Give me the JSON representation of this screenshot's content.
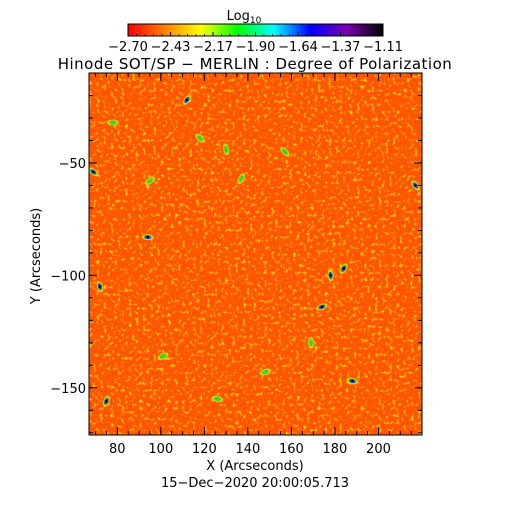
{
  "colorbar": {
    "label_base": "Log",
    "label_subscript": "10",
    "tick_labels": [
      "−2.70",
      "−2.43",
      "−2.17",
      "−1.90",
      "−1.64",
      "−1.37",
      "−1.11"
    ],
    "range": [
      -2.7,
      -1.11
    ]
  },
  "chart_data": {
    "type": "heatmap",
    "title": "Hinode SOT/SP − MERLIN : Degree of Polarization",
    "xlabel": "X (Arcseconds)",
    "ylabel": "Y (Arcseconds)",
    "xlim": [
      67,
      220
    ],
    "ylim": [
      -171,
      -10
    ],
    "x_ticks": [
      80,
      100,
      120,
      140,
      160,
      180,
      200
    ],
    "y_ticks": [
      -50,
      -100,
      -150
    ],
    "colormap": [
      "#000000",
      "#7a00b0",
      "#0000ff",
      "#00ffff",
      "#00ff00",
      "#ffff00",
      "#ff8000",
      "#ff0000"
    ],
    "background_colors": [
      "#ff6a00",
      "#ff2a00",
      "#f5c400",
      "#ffd000"
    ],
    "highlight_regions": [
      {
        "x": 78,
        "y": -32,
        "level": "green"
      },
      {
        "x": 69,
        "y": -54,
        "level": "blue"
      },
      {
        "x": 72,
        "y": -105,
        "level": "blue"
      },
      {
        "x": 75,
        "y": -156,
        "level": "blue"
      },
      {
        "x": 95,
        "y": -58,
        "level": "green"
      },
      {
        "x": 94,
        "y": -83,
        "level": "blue"
      },
      {
        "x": 118,
        "y": -39,
        "level": "green"
      },
      {
        "x": 130,
        "y": -44,
        "level": "green"
      },
      {
        "x": 137,
        "y": -57,
        "level": "green"
      },
      {
        "x": 101,
        "y": -136,
        "level": "green"
      },
      {
        "x": 126,
        "y": -155,
        "level": "green"
      },
      {
        "x": 157,
        "y": -45,
        "level": "green"
      },
      {
        "x": 178,
        "y": -100,
        "level": "blue"
      },
      {
        "x": 184,
        "y": -97,
        "level": "blue"
      },
      {
        "x": 174,
        "y": -114,
        "level": "blue"
      },
      {
        "x": 188,
        "y": -147,
        "level": "blue"
      },
      {
        "x": 217,
        "y": -60,
        "level": "blue"
      },
      {
        "x": 169,
        "y": -130,
        "level": "green"
      },
      {
        "x": 112,
        "y": -22,
        "level": "blue"
      },
      {
        "x": 148,
        "y": -143,
        "level": "green"
      }
    ]
  },
  "footer": {
    "timestamp": "15−Dec−2020 20:00:05.713"
  }
}
